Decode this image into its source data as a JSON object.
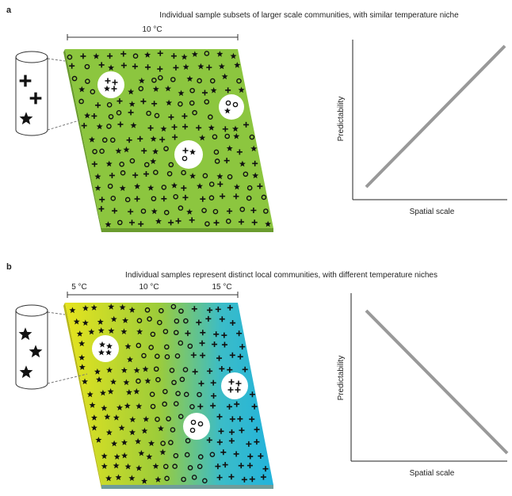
{
  "panel_a": {
    "label": "a",
    "title": "Individual sample subsets of larger scale communities, with similar temperature niche",
    "scale_label": "10 °C",
    "y_axis_label": "Predictability",
    "x_axis_label": "Spatial scale"
  },
  "panel_b": {
    "label": "b",
    "title": "Individual samples represent distinct local communities, with different temperature niches",
    "scale_labels": [
      "5 °C",
      "10 °C",
      "15 °C"
    ],
    "y_axis_label": "Predictability",
    "x_axis_label": "Spatial scale"
  }
}
